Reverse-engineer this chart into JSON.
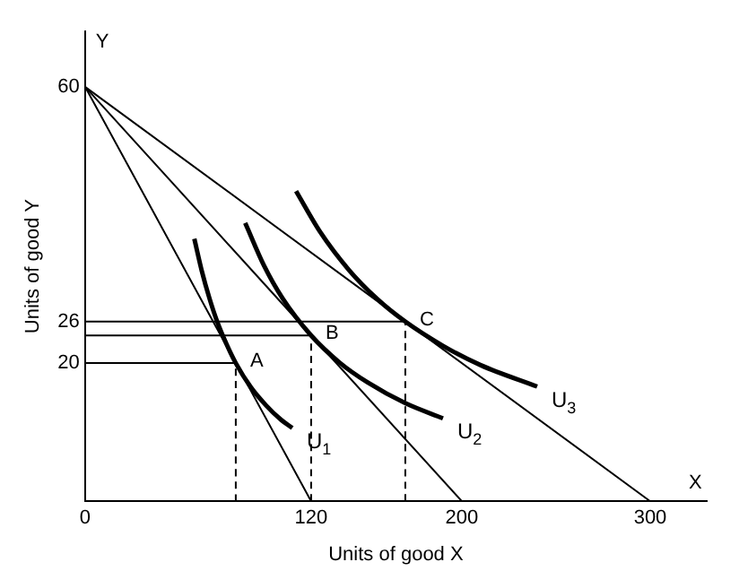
{
  "chart_data": {
    "type": "line",
    "xlabel": "Units of good X",
    "ylabel": "Units of good Y",
    "xlim": [
      0,
      330
    ],
    "ylim": [
      0,
      68
    ],
    "xticks": [
      0,
      120,
      200,
      300
    ],
    "yticks": [
      20,
      26,
      60
    ],
    "grid": false,
    "legend": false,
    "marker": "none",
    "annotations": [
      {
        "text": "A",
        "x": 80,
        "y": 20
      },
      {
        "text": "B",
        "x": 120,
        "y": 24
      },
      {
        "text": "C",
        "x": 170,
        "y": 26
      },
      "X",
      "Y"
    ],
    "series": [
      {
        "color": "#000000",
        "x": [
          0,
          120
        ],
        "values": [
          60,
          0
        ]
      },
      {
        "color": "#000000",
        "x": [
          0,
          200
        ],
        "values": [
          60,
          0
        ]
      },
      {
        "color": "#000000",
        "x": [
          0,
          300
        ],
        "values": [
          60,
          0
        ]
      },
      {
        "name": "U$_{1}$",
        "color": "#000000",
        "x": [
          58,
          62,
          66,
          70,
          75,
          80,
          88,
          96,
          104,
          110
        ],
        "values": [
          38.0,
          33.3,
          29.4,
          26.1,
          22.8,
          20,
          16.5,
          13.9,
          11.8,
          10.6
        ]
      },
      {
        "name": "U$_{2}$",
        "color": "#000000",
        "x": [
          85,
          95,
          105,
          120,
          135,
          150,
          170,
          190
        ],
        "values": [
          40.3,
          34.1,
          29.3,
          24,
          20.1,
          17.2,
          14.2,
          12.0
        ]
      },
      {
        "name": "U$_{3}$",
        "color": "#000000",
        "x": [
          112,
          125,
          140,
          155,
          170,
          190,
          210,
          240
        ],
        "values": [
          44.9,
          38.9,
          33.5,
          29.3,
          26,
          22.5,
          19.7,
          16.6
        ]
      },
      {
        "color": "#000000",
        "x": [
          0,
          80
        ],
        "values": [
          20,
          20
        ]
      },
      {
        "color": "#000000",
        "x": [
          0,
          120
        ],
        "values": [
          24,
          24
        ]
      },
      {
        "color": "#000000",
        "x": [
          0,
          170
        ],
        "values": [
          26,
          26
        ]
      },
      {
        "color": "#000000",
        "line_style": "dashed",
        "x": [
          80,
          80
        ],
        "values": [
          0,
          20
        ]
      },
      {
        "color": "#000000",
        "line_style": "dashed",
        "x": [
          120,
          120
        ],
        "values": [
          0,
          24
        ]
      },
      {
        "color": "#000000",
        "line_style": "dashed",
        "x": [
          170,
          170
        ],
        "values": [
          0,
          26
        ]
      }
    ]
  }
}
